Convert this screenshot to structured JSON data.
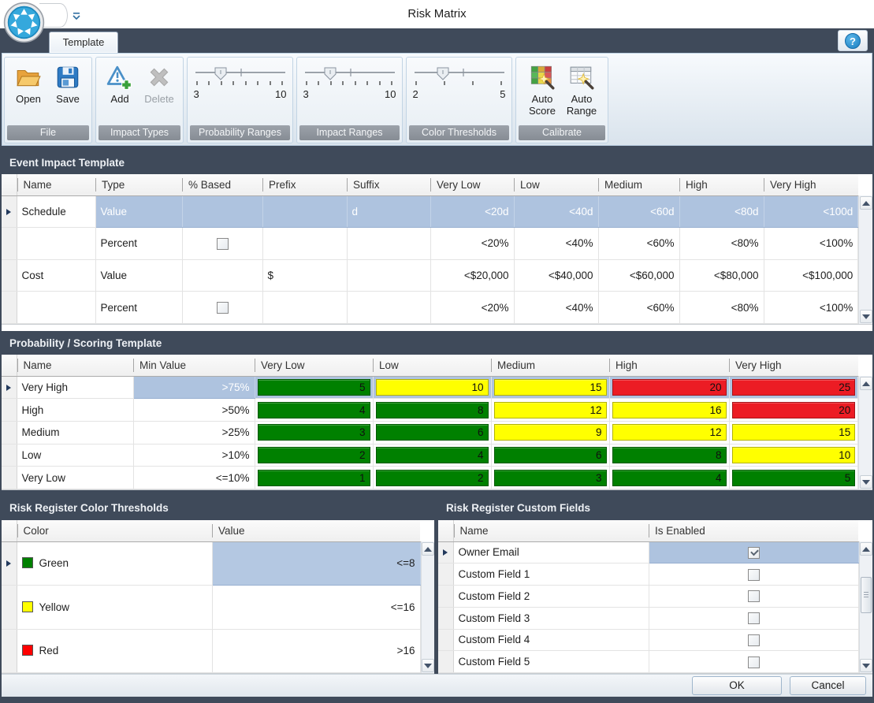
{
  "window": {
    "title": "Risk Matrix"
  },
  "ribbon": {
    "tab": "Template",
    "help_icon": "?",
    "groups": {
      "file": {
        "label": "File",
        "open": "Open",
        "save": "Save"
      },
      "impact_types": {
        "label": "Impact Types",
        "add": "Add",
        "delete": "Delete"
      },
      "probability_ranges": {
        "label": "Probability Ranges",
        "min": "3",
        "max": "10"
      },
      "impact_ranges": {
        "label": "Impact Ranges",
        "min": "3",
        "max": "10"
      },
      "color_thresholds": {
        "label": "Color Thresholds",
        "min": "2",
        "max": "5"
      },
      "calibrate": {
        "label": "Calibrate",
        "auto_score": "Auto Score",
        "auto_range": "Auto Range"
      }
    }
  },
  "score_colors": {
    "green": "#008000",
    "yellow": "#FFFF00",
    "red": "#EC1C24"
  },
  "event_impact": {
    "title": "Event Impact Template",
    "columns": [
      "Name",
      "Type",
      "% Based",
      "Prefix",
      "Suffix",
      "Very Low",
      "Low",
      "Medium",
      "High",
      "Very High"
    ],
    "rows": [
      {
        "name": "Schedule",
        "type": "Value",
        "pct_based": null,
        "prefix": "",
        "suffix": "d",
        "selected": true,
        "values": [
          "<20d",
          "<40d",
          "<60d",
          "<80d",
          "<100d"
        ]
      },
      {
        "name": "",
        "type": "Percent",
        "pct_based": false,
        "prefix": "",
        "suffix": "",
        "selected": false,
        "values": [
          "<20%",
          "<40%",
          "<60%",
          "<80%",
          "<100%"
        ]
      },
      {
        "name": "Cost",
        "type": "Value",
        "pct_based": null,
        "prefix": "$",
        "suffix": "",
        "selected": false,
        "values": [
          "<$20,000",
          "<$40,000",
          "<$60,000",
          "<$80,000",
          "<$100,000"
        ]
      },
      {
        "name": "",
        "type": "Percent",
        "pct_based": false,
        "prefix": "",
        "suffix": "",
        "selected": false,
        "values": [
          "<20%",
          "<40%",
          "<60%",
          "<80%",
          "<100%"
        ]
      }
    ]
  },
  "probability_scoring": {
    "title": "Probability / Scoring Template",
    "columns": [
      "Name",
      "Min Value",
      "Very Low",
      "Low",
      "Medium",
      "High",
      "Very High"
    ],
    "rows": [
      {
        "name": "Very High",
        "min_value": ">75%",
        "selected": true,
        "scores": [
          {
            "v": "5",
            "c": "green"
          },
          {
            "v": "10",
            "c": "yellow"
          },
          {
            "v": "15",
            "c": "yellow"
          },
          {
            "v": "20",
            "c": "red"
          },
          {
            "v": "25",
            "c": "red"
          }
        ]
      },
      {
        "name": "High",
        "min_value": ">50%",
        "selected": false,
        "scores": [
          {
            "v": "4",
            "c": "green"
          },
          {
            "v": "8",
            "c": "green"
          },
          {
            "v": "12",
            "c": "yellow"
          },
          {
            "v": "16",
            "c": "yellow"
          },
          {
            "v": "20",
            "c": "red"
          }
        ]
      },
      {
        "name": "Medium",
        "min_value": ">25%",
        "selected": false,
        "scores": [
          {
            "v": "3",
            "c": "green"
          },
          {
            "v": "6",
            "c": "green"
          },
          {
            "v": "9",
            "c": "yellow"
          },
          {
            "v": "12",
            "c": "yellow"
          },
          {
            "v": "15",
            "c": "yellow"
          }
        ]
      },
      {
        "name": "Low",
        "min_value": ">10%",
        "selected": false,
        "scores": [
          {
            "v": "2",
            "c": "green"
          },
          {
            "v": "4",
            "c": "green"
          },
          {
            "v": "6",
            "c": "green"
          },
          {
            "v": "8",
            "c": "green"
          },
          {
            "v": "10",
            "c": "yellow"
          }
        ]
      },
      {
        "name": "Very Low",
        "min_value": "<=10%",
        "selected": false,
        "scores": [
          {
            "v": "1",
            "c": "green"
          },
          {
            "v": "2",
            "c": "green"
          },
          {
            "v": "3",
            "c": "green"
          },
          {
            "v": "4",
            "c": "green"
          },
          {
            "v": "5",
            "c": "green"
          }
        ]
      }
    ]
  },
  "risk_color_thresholds": {
    "title": "Risk Register Color Thresholds",
    "columns": [
      "Color",
      "Value"
    ],
    "rows": [
      {
        "color_name": "Green",
        "swatch": "#008000",
        "value": "<=8",
        "selected": true
      },
      {
        "color_name": "Yellow",
        "swatch": "#FFFF00",
        "value": "<=16",
        "selected": false
      },
      {
        "color_name": "Red",
        "swatch": "#FF0000",
        "value": ">16",
        "selected": false
      }
    ]
  },
  "custom_fields": {
    "title": "Risk Register Custom Fields",
    "columns": [
      "Name",
      "Is Enabled"
    ],
    "rows": [
      {
        "name": "Owner Email",
        "enabled": true,
        "selected": true
      },
      {
        "name": "Custom Field 1",
        "enabled": false,
        "selected": false
      },
      {
        "name": "Custom Field 2",
        "enabled": false,
        "selected": false
      },
      {
        "name": "Custom Field 3",
        "enabled": false,
        "selected": false
      },
      {
        "name": "Custom Field 4",
        "enabled": false,
        "selected": false
      },
      {
        "name": "Custom Field 5",
        "enabled": false,
        "selected": false
      }
    ]
  },
  "footer": {
    "ok": "OK",
    "cancel": "Cancel"
  }
}
